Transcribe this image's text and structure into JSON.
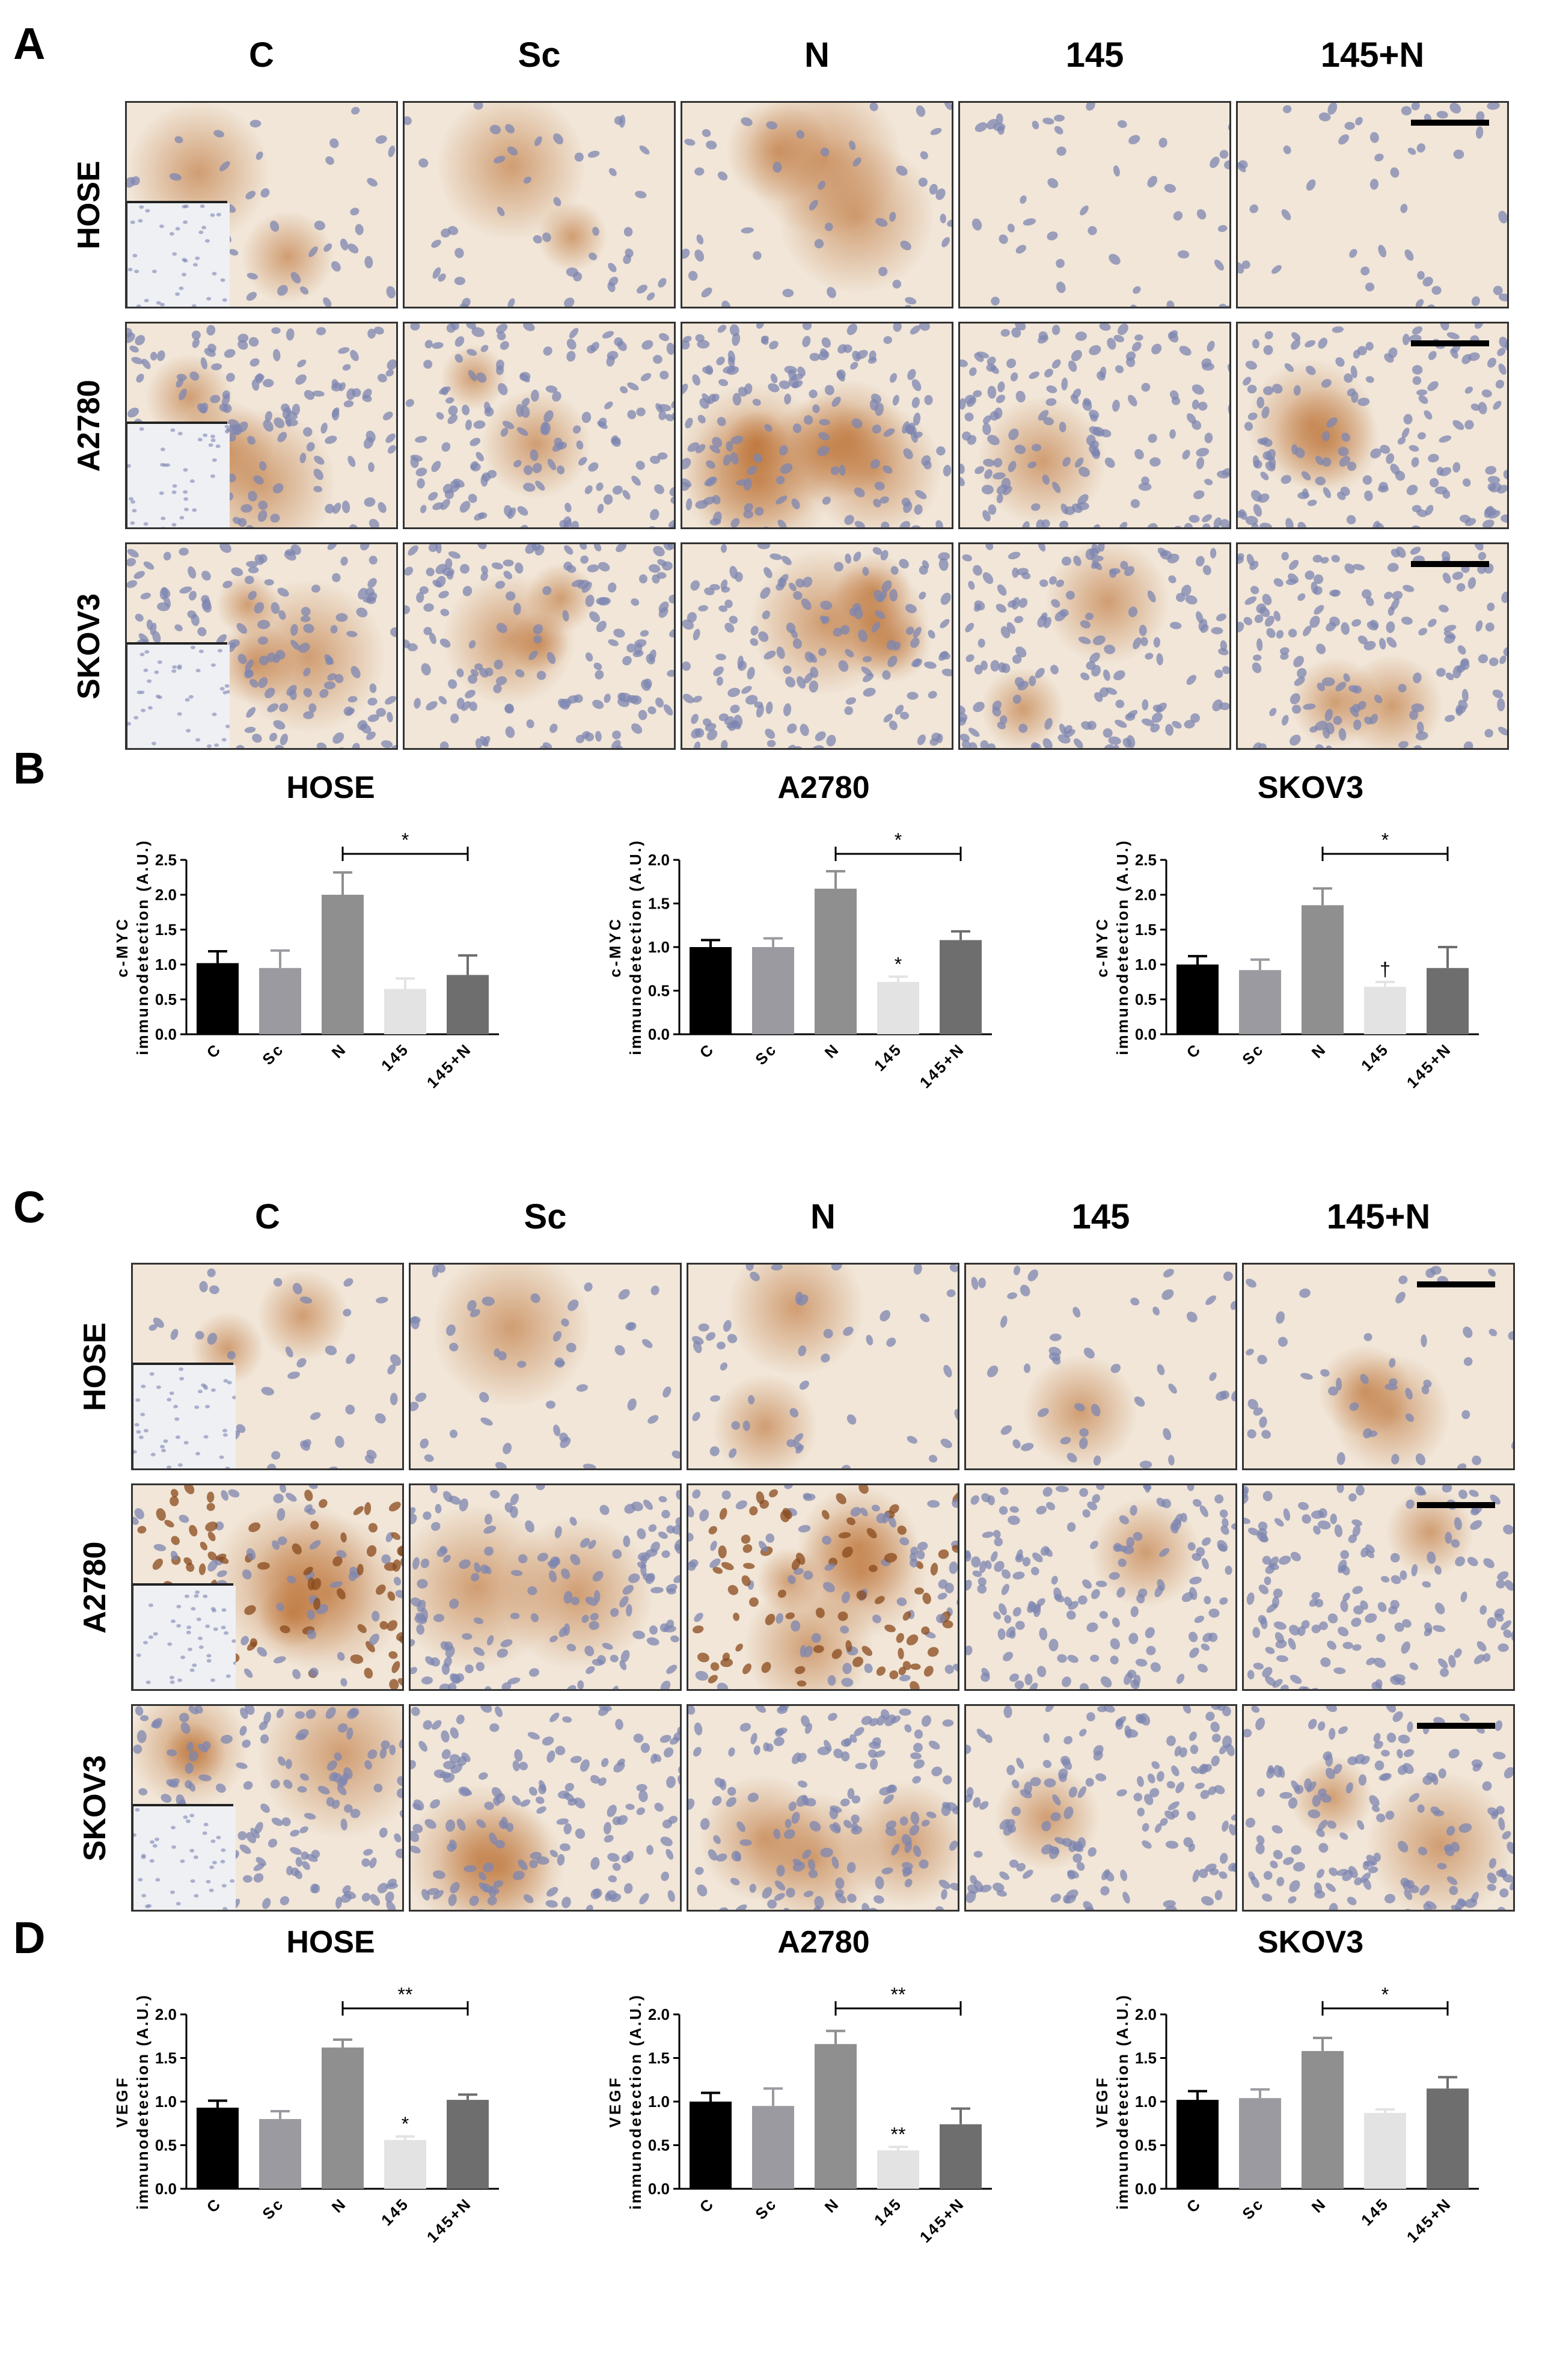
{
  "panels": {
    "a_label": "A",
    "b_label": "B",
    "c_label": "C",
    "d_label": "D"
  },
  "columns": [
    "C",
    "Sc",
    "N",
    "145",
    "145+N"
  ],
  "rows": [
    "HOSE",
    "A2780",
    "SKOV3"
  ],
  "colors": {
    "bar_C": "#000000",
    "bar_Sc": "#9a9aa0",
    "bar_N": "#8f8f8f",
    "bar_145": "#e3e3e3",
    "bar_145N": "#6e6e6e",
    "stain_brown": "#b5621f",
    "nuclei_blue": "#7d86b0",
    "background_cream": "#f1e6d8"
  },
  "chart_data": [
    {
      "panel": "B",
      "type": "bar",
      "title": "HOSE",
      "ylabel_line1": "c-MYC",
      "ylabel_line2": "immunodetection (A.U.)",
      "categories": [
        "C",
        "Sc",
        "N",
        "145",
        "145+N"
      ],
      "values": [
        1.02,
        0.95,
        2.0,
        0.65,
        0.85
      ],
      "errors": [
        0.17,
        0.25,
        0.32,
        0.15,
        0.28
      ],
      "ylim": [
        0,
        2.5
      ],
      "yticks": [
        "0.0",
        "0.5",
        "1.0",
        "1.5",
        "2.0",
        "2.5"
      ],
      "bar_marks": [
        "",
        "",
        "",
        "",
        ""
      ],
      "bracket": {
        "from": 2,
        "to": 4,
        "label": "*"
      }
    },
    {
      "panel": "B",
      "type": "bar",
      "title": "A2780",
      "ylabel_line1": "c-MYC",
      "ylabel_line2": "immunodetection (A.U.)",
      "categories": [
        "C",
        "Sc",
        "N",
        "145",
        "145+N"
      ],
      "values": [
        1.0,
        1.0,
        1.67,
        0.6,
        1.08
      ],
      "errors": [
        0.08,
        0.1,
        0.2,
        0.06,
        0.1
      ],
      "ylim": [
        0,
        2.0
      ],
      "yticks": [
        "0.0",
        "0.5",
        "1.0",
        "1.5",
        "2.0"
      ],
      "bar_marks": [
        "",
        "",
        "",
        "*",
        ""
      ],
      "bracket": {
        "from": 2,
        "to": 4,
        "label": "*"
      }
    },
    {
      "panel": "B",
      "type": "bar",
      "title": "SKOV3",
      "ylabel_line1": "c-MYC",
      "ylabel_line2": "immunodetection (A.U.)",
      "categories": [
        "C",
        "Sc",
        "N",
        "145",
        "145+N"
      ],
      "values": [
        1.0,
        0.92,
        1.85,
        0.68,
        0.95
      ],
      "errors": [
        0.12,
        0.15,
        0.24,
        0.07,
        0.3
      ],
      "ylim": [
        0,
        2.5
      ],
      "yticks": [
        "0.0",
        "0.5",
        "1.0",
        "1.5",
        "2.0",
        "2.5"
      ],
      "bar_marks": [
        "",
        "",
        "",
        "†",
        ""
      ],
      "bracket": {
        "from": 2,
        "to": 4,
        "label": "*"
      }
    },
    {
      "panel": "D",
      "type": "bar",
      "title": "HOSE",
      "ylabel_line1": "VEGF",
      "ylabel_line2": "immunodetection (A.U.)",
      "categories": [
        "C",
        "Sc",
        "N",
        "145",
        "145+N"
      ],
      "values": [
        0.93,
        0.8,
        1.62,
        0.56,
        1.02
      ],
      "errors": [
        0.08,
        0.09,
        0.09,
        0.04,
        0.06
      ],
      "ylim": [
        0,
        2.0
      ],
      "yticks": [
        "0.0",
        "0.5",
        "1.0",
        "1.5",
        "2.0"
      ],
      "bar_marks": [
        "",
        "",
        "",
        "*",
        ""
      ],
      "bracket": {
        "from": 2,
        "to": 4,
        "label": "**"
      }
    },
    {
      "panel": "D",
      "type": "bar",
      "title": "A2780",
      "ylabel_line1": "VEGF",
      "ylabel_line2": "immunodetection (A.U.)",
      "categories": [
        "C",
        "Sc",
        "N",
        "145",
        "145+N"
      ],
      "values": [
        1.0,
        0.95,
        1.66,
        0.44,
        0.74
      ],
      "errors": [
        0.1,
        0.2,
        0.15,
        0.04,
        0.18
      ],
      "ylim": [
        0,
        2.0
      ],
      "yticks": [
        "0.0",
        "0.5",
        "1.0",
        "1.5",
        "2.0"
      ],
      "bar_marks": [
        "",
        "",
        "",
        "**",
        ""
      ],
      "bracket": {
        "from": 2,
        "to": 4,
        "label": "**"
      }
    },
    {
      "panel": "D",
      "type": "bar",
      "title": "SKOV3",
      "ylabel_line1": "VEGF",
      "ylabel_line2": "immunodetection (A.U.)",
      "categories": [
        "C",
        "Sc",
        "N",
        "145",
        "145+N"
      ],
      "values": [
        1.02,
        1.04,
        1.58,
        0.87,
        1.15
      ],
      "errors": [
        0.1,
        0.1,
        0.15,
        0.04,
        0.13
      ],
      "ylim": [
        0,
        2.0
      ],
      "yticks": [
        "0.0",
        "0.5",
        "1.0",
        "1.5",
        "2.0"
      ],
      "bar_marks": [
        "",
        "",
        "",
        "",
        ""
      ],
      "bracket": {
        "from": 2,
        "to": 4,
        "label": "*"
      }
    }
  ]
}
